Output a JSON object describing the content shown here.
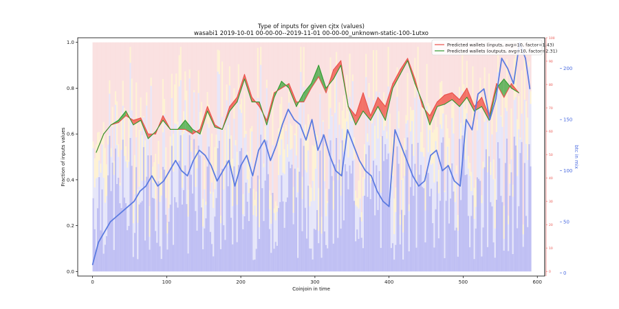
{
  "chart_data": {
    "type": "line",
    "title": "Type of inputs for given cjtx (values)",
    "subtitle": "wasabi1 2019-10-01 00-00-00--2019-11-01 00-00-00_unknown-static-100-1utxo",
    "xlabel": "Coinjoin in time",
    "ylabel": "Fraction of inputs values",
    "ylabel_right": "btc in mix",
    "xlim": [
      -20,
      610
    ],
    "ylim": [
      -0.02,
      1.02
    ],
    "ylim_right": [
      -3,
      230
    ],
    "ylim_red": [
      -2,
      100
    ],
    "x_ticks": [
      0,
      100,
      200,
      300,
      400,
      500,
      600
    ],
    "y_ticks": [
      0.0,
      0.2,
      0.4,
      0.6,
      0.8,
      1.0
    ],
    "y_ticks_right": [
      0,
      50,
      100,
      150,
      200
    ],
    "y_ticks_red": [
      0,
      10,
      20,
      30,
      40,
      50,
      60,
      70,
      80,
      90,
      100
    ],
    "legend_position": "top-right",
    "series": [
      {
        "name": "Predicted wallets (inputs, avg=10, factor=1.43)",
        "color": "#e8504a",
        "x": [
          5,
          15,
          25,
          35,
          45,
          55,
          65,
          75,
          85,
          95,
          105,
          115,
          125,
          135,
          145,
          155,
          165,
          175,
          185,
          195,
          205,
          215,
          225,
          235,
          245,
          255,
          265,
          275,
          285,
          295,
          305,
          315,
          325,
          335,
          345,
          355,
          365,
          375,
          385,
          395,
          405,
          415,
          425,
          435,
          445,
          455,
          465,
          475,
          485,
          495,
          505,
          515,
          525,
          535,
          545,
          555,
          565,
          575
        ],
        "values": [
          0.52,
          0.6,
          0.64,
          0.65,
          0.68,
          0.66,
          0.67,
          0.6,
          0.6,
          0.68,
          0.62,
          0.62,
          0.62,
          0.6,
          0.62,
          0.72,
          0.64,
          0.62,
          0.72,
          0.76,
          0.86,
          0.76,
          0.72,
          0.66,
          0.78,
          0.8,
          0.82,
          0.74,
          0.74,
          0.8,
          0.85,
          0.78,
          0.88,
          0.92,
          0.72,
          0.68,
          0.78,
          0.68,
          0.76,
          0.72,
          0.82,
          0.88,
          0.93,
          0.84,
          0.72,
          0.68,
          0.74,
          0.77,
          0.78,
          0.75,
          0.8,
          0.72,
          0.76,
          0.68,
          0.82,
          0.76,
          0.82,
          0.78
        ]
      },
      {
        "name": "Predicted wallets (outputs, avg=10, factor=2.31)",
        "color": "#2e9a2e",
        "x": [
          5,
          15,
          25,
          35,
          45,
          55,
          65,
          75,
          85,
          95,
          105,
          115,
          125,
          135,
          145,
          155,
          165,
          175,
          185,
          195,
          205,
          215,
          225,
          235,
          245,
          255,
          265,
          275,
          285,
          295,
          305,
          315,
          325,
          335,
          345,
          355,
          365,
          375,
          385,
          395,
          405,
          415,
          425,
          435,
          445,
          455,
          465,
          475,
          485,
          495,
          505,
          515,
          525,
          535,
          545,
          555,
          565,
          575
        ],
        "values": [
          0.52,
          0.6,
          0.64,
          0.66,
          0.7,
          0.64,
          0.66,
          0.58,
          0.61,
          0.66,
          0.62,
          0.62,
          0.66,
          0.62,
          0.6,
          0.7,
          0.63,
          0.62,
          0.7,
          0.74,
          0.84,
          0.74,
          0.74,
          0.64,
          0.76,
          0.83,
          0.8,
          0.72,
          0.78,
          0.82,
          0.9,
          0.8,
          0.84,
          0.9,
          0.72,
          0.64,
          0.7,
          0.66,
          0.72,
          0.66,
          0.8,
          0.86,
          0.92,
          0.82,
          0.74,
          0.64,
          0.72,
          0.73,
          0.75,
          0.72,
          0.76,
          0.7,
          0.72,
          0.66,
          0.8,
          0.84,
          0.8,
          0.78
        ]
      },
      {
        "name": "btc in mix",
        "color": "#5b7be0",
        "axis": "right",
        "x": [
          0,
          8,
          16,
          24,
          32,
          40,
          48,
          56,
          64,
          72,
          80,
          88,
          96,
          104,
          112,
          120,
          128,
          136,
          144,
          152,
          160,
          168,
          176,
          184,
          192,
          200,
          208,
          216,
          224,
          232,
          240,
          248,
          256,
          264,
          272,
          280,
          288,
          296,
          304,
          312,
          320,
          328,
          336,
          344,
          352,
          360,
          368,
          376,
          384,
          392,
          400,
          408,
          416,
          424,
          432,
          440,
          448,
          456,
          464,
          472,
          480,
          488,
          496,
          504,
          512,
          520,
          528,
          536,
          544,
          552,
          560,
          568,
          576,
          584,
          590
        ],
        "values": [
          8,
          30,
          40,
          50,
          55,
          60,
          65,
          70,
          80,
          85,
          95,
          85,
          90,
          100,
          110,
          100,
          95,
          110,
          120,
          115,
          105,
          90,
          100,
          110,
          85,
          105,
          115,
          95,
          120,
          130,
          110,
          125,
          145,
          160,
          150,
          145,
          130,
          150,
          120,
          135,
          115,
          100,
          95,
          140,
          125,
          110,
          100,
          95,
          80,
          70,
          65,
          140,
          125,
          110,
          95,
          85,
          90,
          115,
          120,
          100,
          105,
          90,
          85,
          150,
          140,
          175,
          180,
          150,
          170,
          210,
          200,
          185,
          225,
          210,
          180
        ]
      }
    ],
    "background_bands": "stacked fraction bars per coinjoin: blue (bottom), lavender, yellow, pink (top)"
  }
}
